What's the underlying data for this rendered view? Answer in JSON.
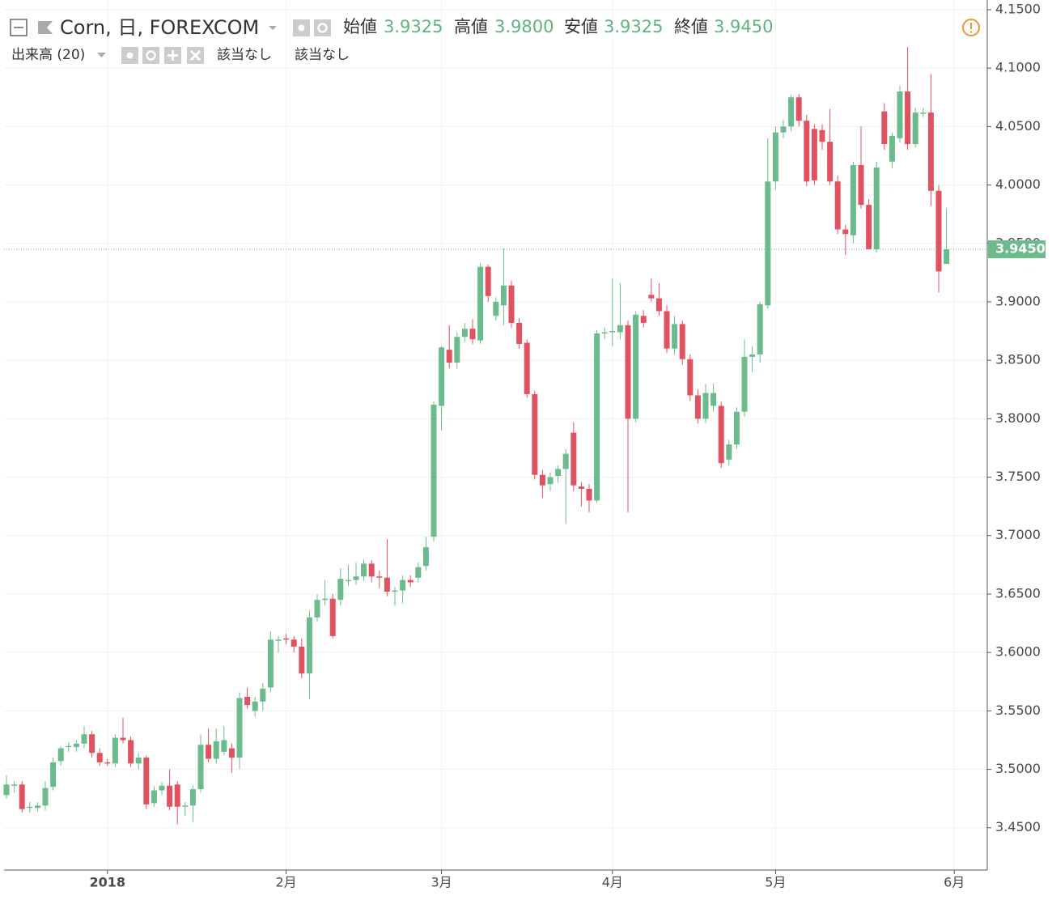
{
  "header": {
    "title": "Corn, 日, FOREXCOM",
    "ohlc": [
      {
        "label": "始値",
        "value": "3.9325"
      },
      {
        "label": "高値",
        "value": "3.9800"
      },
      {
        "label": "安値",
        "value": "3.9325"
      },
      {
        "label": "終値",
        "value": "3.9450"
      }
    ],
    "indicator": {
      "name": "出来高 (20)",
      "values": [
        "該当なし",
        "該当なし"
      ]
    }
  },
  "chart_data": {
    "type": "candlestick",
    "categories": [
      null,
      null,
      null,
      null,
      null,
      null,
      null,
      null,
      null,
      null,
      null,
      null,
      null,
      "2018",
      null,
      null,
      null,
      null,
      null,
      null,
      null,
      null,
      null,
      null,
      null,
      null,
      null,
      null,
      null,
      null,
      null,
      null,
      null,
      null,
      null,
      null,
      "2月",
      null,
      null,
      null,
      null,
      null,
      null,
      null,
      null,
      null,
      null,
      null,
      null,
      null,
      null,
      null,
      null,
      null,
      null,
      null,
      "3月",
      null,
      null,
      null,
      null,
      null,
      null,
      null,
      null,
      null,
      null,
      null,
      null,
      null,
      null,
      null,
      null,
      null,
      null,
      null,
      null,
      null,
      "4月",
      null,
      null,
      null,
      null,
      null,
      null,
      null,
      null,
      null,
      null,
      null,
      null,
      null,
      null,
      null,
      null,
      null,
      null,
      null,
      null,
      "5月",
      null,
      null,
      null,
      null,
      null,
      null,
      null,
      null,
      null,
      null,
      null,
      null,
      null,
      null,
      null,
      null,
      null,
      null,
      null,
      null,
      null,
      null,
      "6月"
    ],
    "open": [
      3.478,
      3.486,
      3.487,
      3.467,
      3.467,
      3.469,
      3.485,
      3.507,
      3.519,
      3.519,
      3.522,
      3.53,
      3.514,
      3.506,
      3.505,
      3.527,
      3.525,
      3.505,
      3.51,
      3.471,
      3.482,
      3.486,
      3.487,
      3.469,
      3.469,
      3.483,
      3.521,
      3.509,
      3.515,
      3.518,
      3.51,
      3.562,
      3.55,
      3.558,
      3.57,
      3.61,
      3.612,
      3.611,
      3.605,
      3.582,
      3.63,
      3.645,
      3.646,
      3.645,
      3.661,
      3.662,
      3.665,
      3.676,
      3.665,
      3.664,
      3.652,
      3.653,
      3.662,
      3.664,
      3.674,
      3.699,
      3.811,
      3.859,
      3.848,
      3.87,
      3.877,
      3.867,
      3.93,
      3.888,
      3.897,
      3.914,
      3.882,
      3.865,
      3.821,
      3.752,
      3.744,
      3.751,
      3.757,
      3.788,
      3.742,
      3.74,
      3.73,
      3.873,
      3.874,
      3.874,
      3.88,
      3.8,
      3.888,
      3.906,
      3.903,
      3.892,
      3.86,
      3.881,
      3.851,
      3.82,
      3.8,
      3.811,
      3.811,
      3.765,
      3.778,
      3.806,
      3.853,
      3.855,
      3.897,
      4.003,
      4.045,
      4.05,
      4.075,
      4.055,
      4.048,
      4.047,
      4.037,
      4.003,
      3.962,
      3.957,
      4.017,
      3.983,
      3.945,
      4.063,
      4.02,
      4.04,
      4.08,
      4.035,
      4.062,
      4.062,
      3.995,
      3.9325,
      null
    ],
    "high": [
      3.495,
      3.49,
      3.49,
      3.472,
      3.472,
      3.49,
      3.51,
      3.52,
      3.523,
      3.525,
      3.537,
      3.533,
      3.518,
      3.509,
      3.53,
      3.544,
      3.528,
      3.514,
      3.512,
      3.486,
      3.489,
      3.5,
      3.49,
      3.472,
      3.486,
      3.53,
      3.535,
      3.535,
      3.537,
      3.522,
      3.566,
      3.57,
      3.562,
      3.574,
      3.618,
      3.614,
      3.616,
      3.614,
      3.612,
      3.636,
      3.65,
      3.662,
      3.65,
      3.672,
      3.675,
      3.677,
      3.68,
      3.679,
      3.67,
      3.697,
      3.656,
      3.666,
      3.666,
      3.677,
      3.699,
      3.815,
      3.862,
      3.88,
      3.874,
      3.882,
      3.885,
      3.933,
      3.932,
      3.904,
      3.946,
      3.918,
      3.886,
      3.868,
      3.824,
      3.756,
      3.754,
      3.76,
      3.774,
      3.797,
      3.746,
      3.744,
      3.876,
      3.878,
      3.92,
      3.916,
      3.884,
      3.892,
      3.893,
      3.92,
      3.916,
      3.897,
      3.888,
      3.884,
      3.855,
      3.825,
      3.83,
      3.83,
      3.815,
      3.782,
      3.81,
      3.868,
      3.862,
      3.9,
      4.04,
      4.05,
      4.056,
      4.077,
      4.078,
      4.06,
      4.052,
      4.052,
      4.065,
      4.008,
      3.966,
      4.02,
      4.05,
      3.988,
      4.02,
      4.07,
      4.045,
      4.085,
      4.118,
      4.066,
      4.066,
      4.095,
      4.0,
      3.98,
      null
    ],
    "low": [
      3.475,
      3.48,
      3.463,
      3.463,
      3.464,
      3.465,
      3.482,
      3.503,
      3.515,
      3.515,
      3.518,
      3.51,
      3.503,
      3.503,
      3.502,
      3.522,
      3.502,
      3.5,
      3.466,
      3.468,
      3.478,
      3.465,
      3.453,
      3.46,
      3.455,
      3.48,
      3.506,
      3.505,
      3.512,
      3.497,
      3.5,
      3.552,
      3.545,
      3.55,
      3.566,
      3.6,
      3.607,
      3.6,
      3.578,
      3.56,
      3.626,
      3.64,
      3.612,
      3.64,
      3.657,
      3.658,
      3.661,
      3.66,
      3.655,
      3.648,
      3.64,
      3.642,
      3.656,
      3.66,
      3.67,
      3.695,
      3.79,
      3.843,
      3.843,
      3.866,
      3.864,
      3.864,
      3.9,
      3.884,
      3.88,
      3.878,
      3.86,
      3.818,
      3.748,
      3.732,
      3.738,
      3.745,
      3.71,
      3.738,
      3.725,
      3.72,
      3.728,
      3.868,
      3.862,
      3.868,
      3.72,
      3.797,
      3.878,
      3.9,
      3.888,
      3.856,
      3.855,
      3.846,
      3.815,
      3.796,
      3.796,
      3.806,
      3.758,
      3.76,
      3.774,
      3.802,
      3.84,
      3.848,
      3.894,
      3.996,
      4.04,
      4.046,
      4.05,
      3.999,
      4.0,
      4.03,
      4.0,
      3.958,
      3.94,
      3.95,
      3.98,
      3.945,
      3.942,
      4.03,
      4.014,
      4.036,
      4.03,
      4.032,
      4.058,
      3.982,
      3.908,
      3.9325,
      null
    ],
    "close": [
      3.487,
      3.487,
      3.466,
      3.468,
      3.469,
      3.484,
      3.506,
      3.518,
      3.52,
      3.522,
      3.53,
      3.514,
      3.506,
      3.505,
      3.527,
      3.525,
      3.505,
      3.51,
      3.47,
      3.482,
      3.486,
      3.468,
      3.468,
      3.469,
      3.483,
      3.521,
      3.509,
      3.524,
      3.525,
      3.51,
      3.561,
      3.555,
      3.558,
      3.569,
      3.611,
      3.611,
      3.611,
      3.605,
      3.582,
      3.63,
      3.645,
      3.646,
      3.614,
      3.663,
      3.662,
      3.665,
      3.676,
      3.665,
      3.664,
      3.652,
      3.653,
      3.662,
      3.66,
      3.673,
      3.69,
      3.812,
      3.861,
      3.848,
      3.87,
      3.877,
      3.868,
      3.93,
      3.905,
      3.9,
      3.914,
      3.882,
      3.864,
      3.821,
      3.752,
      3.743,
      3.75,
      3.757,
      3.77,
      3.743,
      3.74,
      3.73,
      3.873,
      3.874,
      3.875,
      3.88,
      3.8,
      3.889,
      3.882,
      3.903,
      3.892,
      3.86,
      3.881,
      3.851,
      3.82,
      3.8,
      3.822,
      3.822,
      3.762,
      3.778,
      3.806,
      3.853,
      3.855,
      3.898,
      4.003,
      4.045,
      4.05,
      4.075,
      4.055,
      4.003,
      4.004,
      4.037,
      4.003,
      3.962,
      3.958,
      4.017,
      3.983,
      3.945,
      4.015,
      4.035,
      4.042,
      4.08,
      4.035,
      4.062,
      4.062,
      3.995,
      3.926,
      3.945,
      null
    ],
    "up_color": "#6cbb8d",
    "down_color": "#e05260",
    "ylim": [
      3.4138,
      4.1583
    ],
    "yticks": [
      {
        "value": 3.45,
        "label": "3.4500"
      },
      {
        "value": 3.5,
        "label": "3.5000"
      },
      {
        "value": 3.55,
        "label": "3.5500"
      },
      {
        "value": 3.6,
        "label": "3.6000"
      },
      {
        "value": 3.65,
        "label": "3.6500"
      },
      {
        "value": 3.7,
        "label": "3.7000"
      },
      {
        "value": 3.75,
        "label": "3.7500"
      },
      {
        "value": 3.8,
        "label": "3.8000"
      },
      {
        "value": 3.85,
        "label": "3.8500"
      },
      {
        "value": 3.9,
        "label": "3.9000"
      },
      {
        "value": 3.95,
        "label": "3.9500"
      },
      {
        "value": 4.0,
        "label": "4.0000"
      },
      {
        "value": 4.05,
        "label": "4.0500"
      },
      {
        "value": 4.1,
        "label": "4.1000"
      },
      {
        "value": 4.15,
        "label": "4.1500"
      }
    ],
    "last_price": {
      "value": 3.945,
      "label": "3.9450"
    },
    "grid": true
  }
}
